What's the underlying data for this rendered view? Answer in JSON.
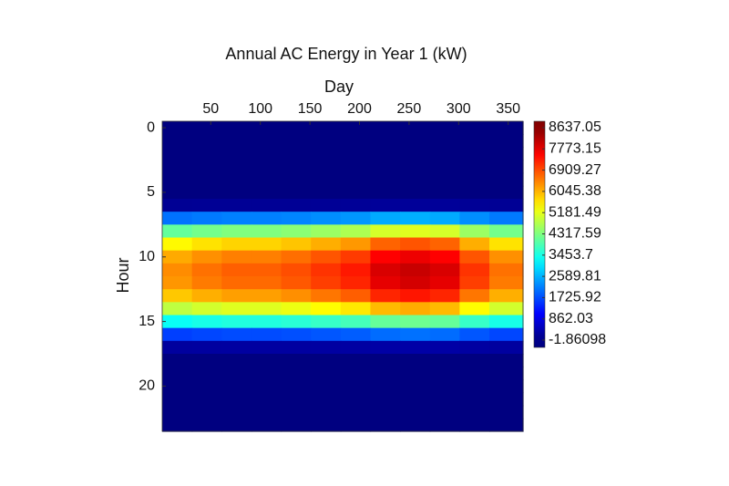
{
  "chart_data": {
    "type": "heatmap",
    "title": "Annual AC Energy in Year 1 (kW)",
    "xlabel": "Day",
    "ylabel": "Hour",
    "x_bins": [
      1,
      31,
      61,
      91,
      121,
      151,
      181,
      211,
      241,
      271,
      301,
      331,
      365
    ],
    "y": [
      0,
      1,
      2,
      3,
      4,
      5,
      6,
      7,
      8,
      9,
      10,
      11,
      12,
      13,
      14,
      15,
      16,
      17,
      18,
      19,
      20,
      21,
      22,
      23
    ],
    "z": [
      [
        0,
        0,
        0,
        0,
        0,
        0,
        0,
        0,
        0,
        0,
        0,
        0
      ],
      [
        0,
        0,
        0,
        0,
        0,
        0,
        0,
        0,
        0,
        0,
        0,
        0
      ],
      [
        0,
        0,
        0,
        0,
        0,
        0,
        0,
        0,
        0,
        0,
        0,
        0
      ],
      [
        0,
        0,
        0,
        0,
        0,
        0,
        0,
        0,
        0,
        0,
        0,
        0
      ],
      [
        0,
        0,
        0,
        0,
        0,
        0,
        0,
        0,
        0,
        0,
        0,
        0
      ],
      [
        0,
        0,
        0,
        0,
        0,
        0,
        0,
        0,
        0,
        0,
        0,
        0
      ],
      [
        170,
        176,
        180,
        180,
        184,
        190,
        196,
        210,
        214,
        210,
        190,
        176
      ],
      [
        2040,
        2112,
        2160,
        2160,
        2208,
        2280,
        2352,
        2520,
        2568,
        2520,
        2280,
        2112
      ],
      [
        4080,
        4224,
        4320,
        4320,
        4416,
        4560,
        4704,
        5040,
        5136,
        5040,
        4560,
        4224
      ],
      [
        5440,
        5632,
        5760,
        5760,
        5888,
        6080,
        6272,
        6720,
        6848,
        6720,
        6080,
        5632
      ],
      [
        6120,
        6336,
        6480,
        6480,
        6624,
        6840,
        7056,
        7560,
        7704,
        7560,
        6840,
        6336
      ],
      [
        6375,
        6600,
        6750,
        6750,
        6900,
        7125,
        7350,
        7875,
        8025,
        7875,
        7125,
        6600
      ],
      [
        6290,
        6512,
        6660,
        6660,
        6808,
        7030,
        7252,
        7770,
        7918,
        7770,
        7030,
        6512
      ],
      [
        5865,
        6072,
        6210,
        6210,
        6348,
        6555,
        6762,
        7245,
        7383,
        7245,
        6555,
        6072
      ],
      [
        4845,
        5016,
        5130,
        5130,
        5244,
        5415,
        5586,
        5985,
        6099,
        5985,
        5415,
        5016
      ],
      [
        3315,
        3432,
        3510,
        3510,
        3588,
        3705,
        3822,
        4095,
        4173,
        4095,
        3705,
        3432
      ],
      [
        1615,
        1672,
        1710,
        1710,
        1748,
        1805,
        1862,
        1995,
        2033,
        1995,
        1805,
        1672
      ],
      [
        255,
        264,
        270,
        270,
        276,
        285,
        294,
        315,
        321,
        315,
        285,
        264
      ],
      [
        0,
        0,
        0,
        0,
        0,
        0,
        0,
        0,
        0,
        0,
        0,
        0
      ],
      [
        0,
        0,
        0,
        0,
        0,
        0,
        0,
        0,
        0,
        0,
        0,
        0
      ],
      [
        0,
        0,
        0,
        0,
        0,
        0,
        0,
        0,
        0,
        0,
        0,
        0
      ],
      [
        0,
        0,
        0,
        0,
        0,
        0,
        0,
        0,
        0,
        0,
        0,
        0
      ],
      [
        0,
        0,
        0,
        0,
        0,
        0,
        0,
        0,
        0,
        0,
        0,
        0
      ],
      [
        0,
        0,
        0,
        0,
        0,
        0,
        0,
        0,
        0,
        0,
        0,
        0
      ]
    ],
    "xlim": [
      1,
      365
    ],
    "xticks": [
      50,
      100,
      150,
      200,
      250,
      300,
      350
    ],
    "ylim": [
      -0.5,
      23.5
    ],
    "yticks": [
      0,
      5,
      10,
      15,
      20
    ],
    "colormap": "jet",
    "clim": [
      -1.86098,
      8637.05
    ],
    "cticks": [
      -1.86098,
      862.03,
      1725.92,
      2589.81,
      3453.7,
      4317.59,
      5181.49,
      6045.38,
      6909.27,
      7773.15,
      8637.05
    ]
  }
}
